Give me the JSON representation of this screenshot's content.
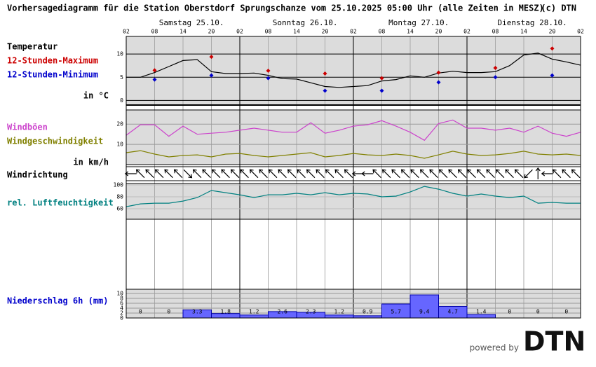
{
  "header": {
    "title": "Vorhersagediagramm für die Station Oberstdorf Sprungschanze vom 25.10.2025 05:00 Uhr (alle Zeiten in MESZ)",
    "copyright": "(c) DTN"
  },
  "time_axis": {
    "days": [
      "Samstag 25.10.",
      "Sonntag 26.10.",
      "Montag 27.10.",
      "Dienstag 28.10."
    ],
    "hours": [
      "02",
      "08",
      "14",
      "20",
      "02",
      "08",
      "14",
      "20",
      "02",
      "08",
      "14",
      "20",
      "02",
      "08",
      "14",
      "20",
      "02"
    ]
  },
  "footer": {
    "powered_by": "powered by",
    "logo": "DTN"
  },
  "chart_data": [
    {
      "type": "line",
      "title": "Temperatur",
      "units": "in °C",
      "ylim": [
        -1,
        13.8
      ],
      "yticks": [
        0,
        5,
        10
      ],
      "grid_color": "#000000",
      "series": [
        {
          "color": "#000000",
          "values": [
            5.0,
            5.0,
            6.0,
            7.3,
            8.6,
            8.8,
            6.2,
            5.8,
            5.8,
            5.9,
            5.4,
            4.7,
            4.6,
            3.8,
            3.0,
            2.8,
            3.0,
            3.2,
            4.2,
            4.5,
            5.3,
            5.0,
            5.9,
            6.3,
            6.0,
            6.0,
            6.2,
            7.5,
            9.8,
            10.2,
            8.9,
            8.3,
            7.6
          ]
        },
        {
          "name": "12-Stunden-Maximum",
          "color": "#cc0000",
          "marker": "diamond",
          "values": [
            null,
            6.5,
            null,
            9.4,
            null,
            6.4,
            null,
            5.8,
            null,
            4.8,
            null,
            6.0,
            null,
            7.0,
            null,
            11.2,
            null
          ]
        },
        {
          "name": "12-Stunden-Minimum",
          "color": "#0000cc",
          "marker": "diamond",
          "values": [
            null,
            4.5,
            null,
            5.4,
            null,
            4.8,
            null,
            2.1,
            null,
            2.1,
            null,
            3.9,
            null,
            5.0,
            null,
            5.4,
            null
          ]
        }
      ]
    },
    {
      "type": "line",
      "units": "in km/h",
      "ylim": [
        0,
        27
      ],
      "yticks": [
        10,
        20
      ],
      "grid_color": "#999999",
      "series": [
        {
          "name": "Windböen",
          "color": "#cc44cc",
          "values": [
            14.5,
            19.7,
            19.7,
            14,
            19,
            15,
            15.5,
            16,
            17,
            18,
            17,
            16,
            16,
            20.7,
            15.5,
            17,
            19,
            19.7,
            21.7,
            19,
            16,
            12,
            20.3,
            22,
            18,
            18,
            17,
            18,
            16,
            19,
            15.5,
            14,
            16
          ]
        },
        {
          "name": "Windgeschwindigkeit",
          "color": "#808000",
          "values": [
            5.9,
            6.9,
            5.2,
            3.8,
            4.5,
            4.8,
            3.8,
            5.2,
            5.5,
            4.5,
            3.8,
            4.5,
            5.2,
            5.9,
            3.8,
            4.5,
            5.5,
            4.8,
            4.5,
            5.2,
            4.5,
            3.1,
            4.8,
            6.6,
            5.2,
            4.5,
            4.8,
            5.5,
            6.6,
            5.2,
            4.8,
            5.2,
            4.5
          ]
        }
      ]
    },
    {
      "type": "arrows",
      "title": "Windrichtung",
      "color": "#000000",
      "values": [
        90,
        135,
        135,
        135,
        135,
        135,
        315,
        135,
        135,
        135,
        135,
        135,
        135,
        135,
        135,
        135,
        135,
        135,
        135,
        135,
        135,
        135,
        135,
        135,
        90,
        90,
        135,
        135,
        135,
        135,
        135,
        135,
        135,
        135,
        135,
        135,
        135,
        135,
        135,
        135,
        135,
        135,
        45,
        180,
        90,
        135,
        135,
        135
      ]
    },
    {
      "type": "line",
      "ylim": [
        42.4,
        102.4
      ],
      "yticks": [
        60,
        80,
        100
      ],
      "grid_color": "#bbbbbb",
      "series": [
        {
          "name": "rel. Luftfeuchtigkeit",
          "color": "#008080",
          "values": [
            63.5,
            68.2,
            69.4,
            69.4,
            72.9,
            78.8,
            90.6,
            87,
            83.5,
            78.8,
            83.5,
            83.5,
            85.9,
            83.5,
            87,
            83.5,
            85.9,
            84.7,
            80,
            81.2,
            88.2,
            97.6,
            92.9,
            85.9,
            81.2,
            84.7,
            81.2,
            78.8,
            81.2,
            69.4,
            70.6,
            69.4,
            69.4
          ]
        }
      ]
    },
    {
      "type": "bar",
      "title": "Niederschlag 6h (mm)",
      "title_color": "#0000cc",
      "color": "#6666ff",
      "ylim": [
        0,
        11.7
      ],
      "yticks": [
        0,
        2,
        4,
        6,
        8,
        10
      ],
      "grid_color": "#999999",
      "values": [
        0,
        0,
        3.3,
        1.8,
        1.2,
        2.6,
        2.3,
        1.2,
        0.9,
        5.7,
        9.4,
        4.7,
        1.4,
        0,
        0,
        0
      ]
    }
  ]
}
